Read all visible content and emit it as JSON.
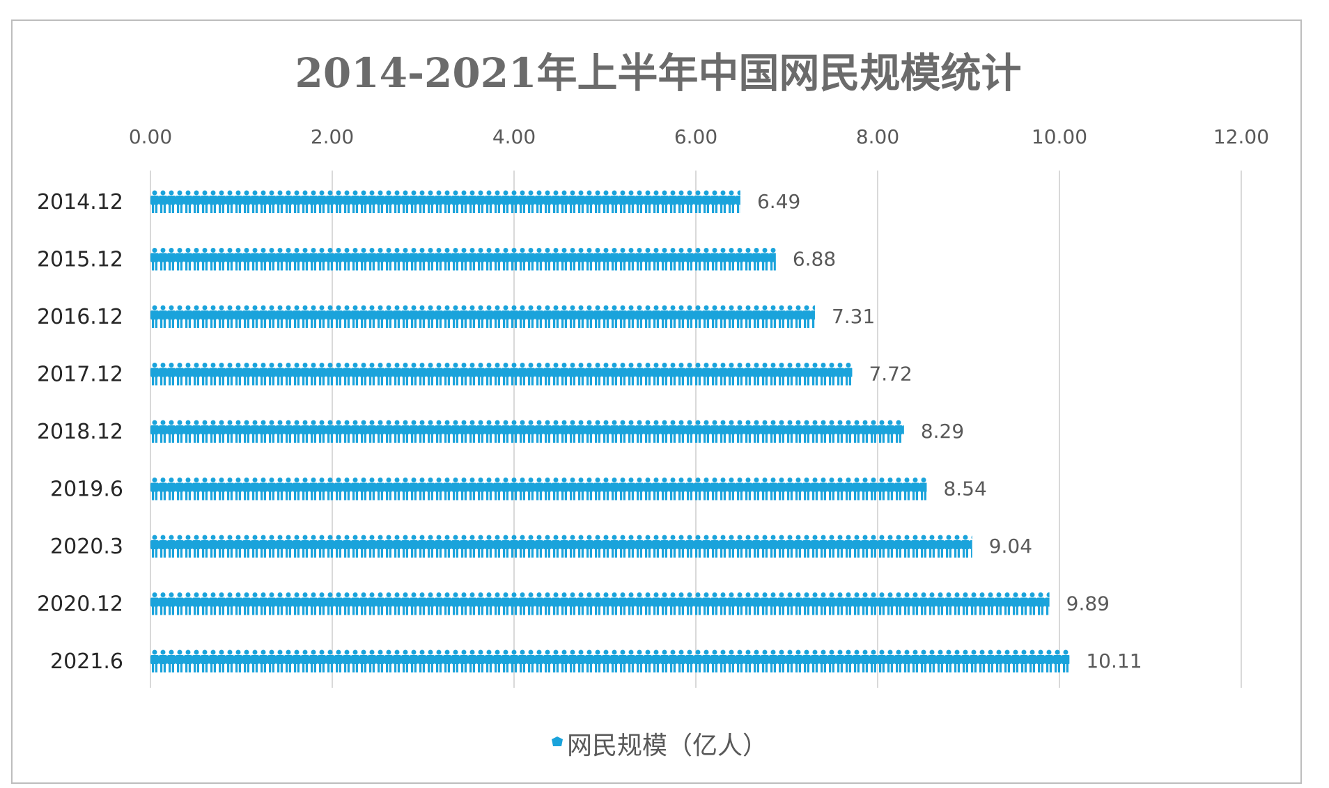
{
  "chart_data": {
    "type": "bar",
    "orientation": "horizontal",
    "title": "2014-2021年上半年中国网民规模统计",
    "categories": [
      "2014.12",
      "2015.12",
      "2016.12",
      "2017.12",
      "2018.12",
      "2019.6",
      "2020.3",
      "2020.12",
      "2021.6"
    ],
    "series": [
      {
        "name": "网民规模（亿人）",
        "values": [
          6.49,
          6.88,
          7.31,
          7.72,
          8.29,
          8.54,
          9.04,
          9.89,
          10.11
        ],
        "color": "#1aa3db"
      }
    ],
    "value_labels": [
      "6.49",
      "6.88",
      "7.31",
      "7.72",
      "8.29",
      "8.54",
      "9.04",
      "9.89",
      "10.11"
    ],
    "xlim": [
      0,
      12
    ],
    "x_ticks": [
      "0.00",
      "2.00",
      "4.00",
      "6.00",
      "8.00",
      "10.00",
      "12.00"
    ],
    "x_axis_position": "top",
    "grid": true,
    "legend_position": "bottom",
    "bar_fill": "person-icon pictograph"
  }
}
